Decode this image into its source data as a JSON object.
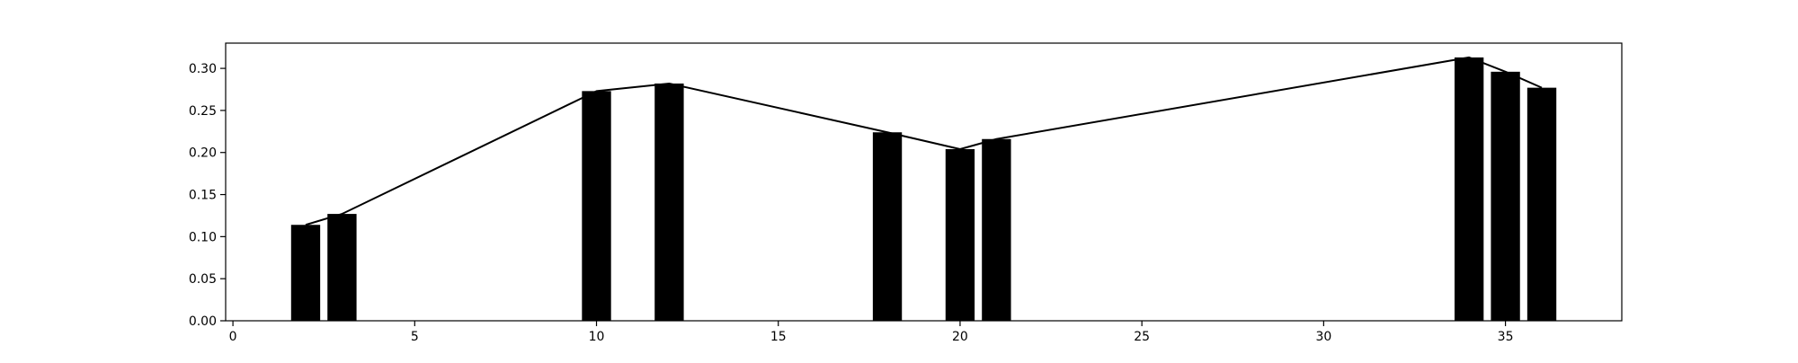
{
  "chart_data": {
    "type": "bar",
    "title": "",
    "xlabel": "",
    "ylabel": "",
    "xlim": [
      -0.2,
      38.2
    ],
    "ylim": [
      0.0,
      0.33
    ],
    "grid": false,
    "x_ticks": [
      0,
      5,
      10,
      15,
      20,
      25,
      30,
      35
    ],
    "y_ticks": [
      0.0,
      0.05,
      0.1,
      0.15,
      0.2,
      0.25,
      0.3
    ],
    "x_tick_labels": [
      "0",
      "5",
      "10",
      "15",
      "20",
      "25",
      "30",
      "35"
    ],
    "y_tick_labels": [
      "0.00",
      "0.05",
      "0.10",
      "0.15",
      "0.20",
      "0.25",
      "0.30"
    ],
    "bar_width": 0.8,
    "bars": [
      {
        "x": 2,
        "value": 0.114
      },
      {
        "x": 3,
        "value": 0.127
      },
      {
        "x": 10,
        "value": 0.273
      },
      {
        "x": 12,
        "value": 0.282
      },
      {
        "x": 18,
        "value": 0.224
      },
      {
        "x": 20,
        "value": 0.204
      },
      {
        "x": 21,
        "value": 0.216
      },
      {
        "x": 34,
        "value": 0.313
      },
      {
        "x": 35,
        "value": 0.296
      },
      {
        "x": 36,
        "value": 0.277
      }
    ],
    "line": {
      "x": [
        2,
        3,
        10,
        12,
        18,
        20,
        21,
        34,
        35,
        36
      ],
      "y": [
        0.114,
        0.127,
        0.273,
        0.282,
        0.224,
        0.204,
        0.216,
        0.313,
        0.296,
        0.277
      ]
    },
    "colors": {
      "bars": "#000000",
      "line": "#000000",
      "axes": "#000000",
      "background": "#ffffff"
    }
  }
}
